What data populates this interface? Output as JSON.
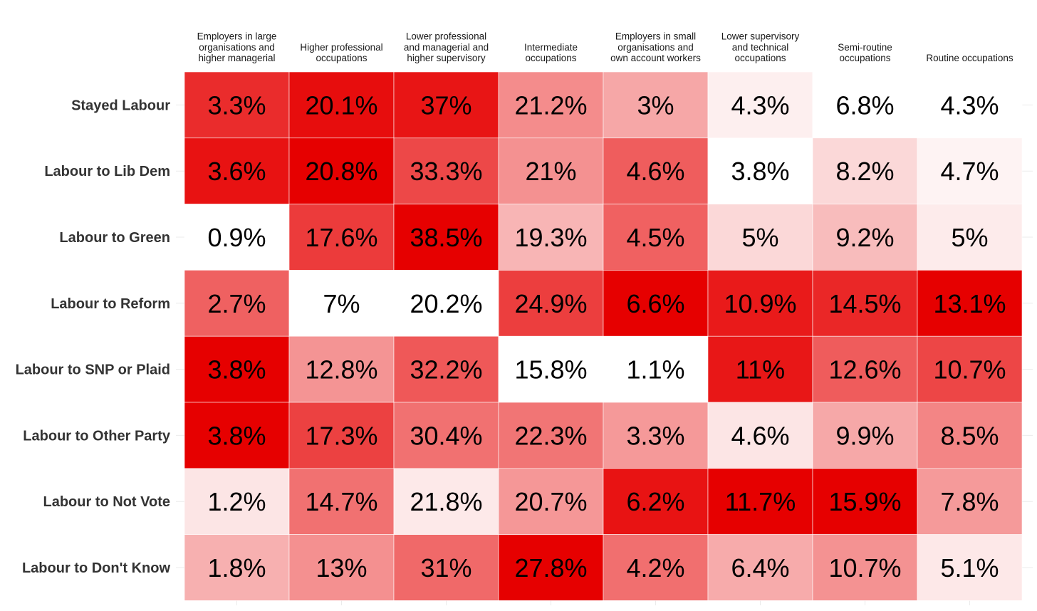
{
  "chart_data": {
    "type": "heatmap",
    "title": "",
    "xlabel": "",
    "ylabel": "",
    "legend": "none",
    "colors": {
      "low": "#ffffff",
      "high": "#e60000",
      "text": "#000000",
      "row_label": "#333333",
      "col_label": "#1a1a1a"
    },
    "columns": [
      [
        "Employers in large",
        "organisations and",
        "higher managerial"
      ],
      [
        "Higher professional",
        "occupations"
      ],
      [
        "Lower professional",
        "and managerial and",
        "higher supervisory"
      ],
      [
        "Intermediate",
        "occupations"
      ],
      [
        "Employers in small",
        "organisations and",
        "own account workers"
      ],
      [
        "Lower supervisory",
        "and technical",
        "occupations"
      ],
      [
        "Semi-routine",
        "occupations"
      ],
      [
        "Routine occupations"
      ]
    ],
    "rows": [
      "Stayed Labour",
      "Labour to Lib Dem",
      "Labour to Green",
      "Labour to Reform",
      "Labour to SNP or Plaid",
      "Labour to Other Party",
      "Labour to Not Vote",
      "Labour to Don't Know"
    ],
    "values": [
      [
        3.3,
        20.1,
        37,
        21.2,
        3,
        4.3,
        6.8,
        4.3
      ],
      [
        3.6,
        20.8,
        33.3,
        21,
        4.6,
        3.8,
        8.2,
        4.7
      ],
      [
        0.9,
        17.6,
        38.5,
        19.3,
        4.5,
        5,
        9.2,
        5
      ],
      [
        2.7,
        7,
        20.2,
        24.9,
        6.6,
        10.9,
        14.5,
        13.1
      ],
      [
        3.8,
        12.8,
        32.2,
        15.8,
        1.1,
        11,
        12.6,
        10.7
      ],
      [
        3.8,
        17.3,
        30.4,
        22.3,
        3.3,
        4.6,
        9.9,
        8.5
      ],
      [
        1.2,
        14.7,
        21.8,
        20.7,
        6.2,
        11.7,
        15.9,
        7.8
      ],
      [
        1.8,
        13,
        31,
        27.8,
        4.2,
        6.4,
        10.7,
        5.1
      ]
    ],
    "labels": [
      [
        "3.3%",
        "20.1%",
        "37%",
        "21.2%",
        "3%",
        "4.3%",
        "6.8%",
        "4.3%"
      ],
      [
        "3.6%",
        "20.8%",
        "33.3%",
        "21%",
        "4.6%",
        "3.8%",
        "8.2%",
        "4.7%"
      ],
      [
        "0.9%",
        "17.6%",
        "38.5%",
        "19.3%",
        "4.5%",
        "5%",
        "9.2%",
        "5%"
      ],
      [
        "2.7%",
        "7%",
        "20.2%",
        "24.9%",
        "6.6%",
        "10.9%",
        "14.5%",
        "13.1%"
      ],
      [
        "3.8%",
        "12.8%",
        "32.2%",
        "15.8%",
        "1.1%",
        "11%",
        "12.6%",
        "10.7%"
      ],
      [
        "3.8%",
        "17.3%",
        "30.4%",
        "22.3%",
        "3.3%",
        "4.6%",
        "9.9%",
        "8.5%"
      ],
      [
        "1.2%",
        "14.7%",
        "21.8%",
        "20.7%",
        "6.2%",
        "11.7%",
        "15.9%",
        "7.8%"
      ],
      [
        "1.8%",
        "13%",
        "31%",
        "27.8%",
        "4.2%",
        "6.4%",
        "10.7%",
        "5.1%"
      ]
    ]
  }
}
